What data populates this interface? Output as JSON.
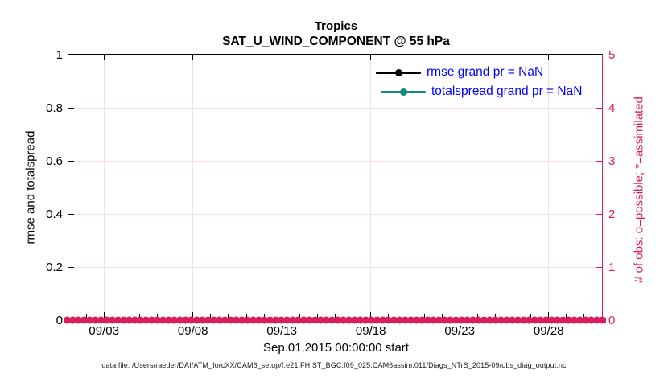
{
  "figure": {
    "title": "Tropics",
    "subtitle": "SAT_U_WIND_COMPONENT @ 55 hPa"
  },
  "legend": {
    "text_color": "#0000ff",
    "items": [
      {
        "label": "rmse grand pr = NaN",
        "color": "#000000"
      },
      {
        "label": "totalspread grand pr = NaN",
        "color": "#168a81"
      }
    ]
  },
  "footer": {
    "text": "data file: /Users/raeder/DAI/ATM_forcXX/CAM6_setup/f.e21.FHIST_BGC.f09_025.CAM6assim.011/Diags_NTrS_2015-09/obs_diag_output.nc"
  },
  "chart_data": {
    "type": "line",
    "title": "Tropics",
    "subtitle": "SAT_U_WIND_COMPONENT @ 55 hPa",
    "x_axis": {
      "label": "Sep.01,2015 00:00:00 start",
      "start": "2015-09-01 00:00:00",
      "total_days": 30,
      "minor_tick_every_days": 1,
      "ticks": [
        {
          "label": "09/03",
          "day": 2
        },
        {
          "label": "09/08",
          "day": 7
        },
        {
          "label": "09/13",
          "day": 12
        },
        {
          "label": "09/18",
          "day": 17
        },
        {
          "label": "09/23",
          "day": 22
        },
        {
          "label": "09/28",
          "day": 27
        }
      ]
    },
    "y_left": {
      "label": "rmse and totalspread",
      "lim": [
        0,
        1
      ],
      "color": "#000000",
      "ticks": [
        {
          "label": "0",
          "value": 0
        },
        {
          "label": "0.2",
          "value": 0.2
        },
        {
          "label": "0.4",
          "value": 0.4
        },
        {
          "label": "0.6",
          "value": 0.6
        },
        {
          "label": "0.8",
          "value": 0.8
        },
        {
          "label": "1",
          "value": 1
        }
      ]
    },
    "y_right": {
      "label": "# of obs: o=possible; *=assimilated",
      "lim": [
        0,
        5
      ],
      "color": "#da1c60",
      "ticks": [
        {
          "label": "0",
          "value": 0
        },
        {
          "label": "1",
          "value": 1
        },
        {
          "label": "2",
          "value": 2
        },
        {
          "label": "3",
          "value": 3
        },
        {
          "label": "4",
          "value": 4
        },
        {
          "label": "5",
          "value": 5
        }
      ]
    },
    "grid": {
      "vertical_color": "#e4e4e4",
      "horizontal_color": "#fbdce8",
      "on": true
    },
    "legend_position": "upper-right-inside-no-box",
    "series": [
      {
        "name": "rmse",
        "legend": "rmse grand pr = NaN",
        "grand_pr": "NaN",
        "color": "#000000",
        "all_nan": true,
        "values": []
      },
      {
        "name": "totalspread",
        "legend": "totalspread grand pr = NaN",
        "grand_pr": "NaN",
        "color": "#168a81",
        "all_nan": true,
        "values": []
      },
      {
        "name": "assimilated_obs_count",
        "axis": "right",
        "marker": "*",
        "color": "#da1c60",
        "constant_value": 0,
        "x_range_days": [
          0,
          30
        ]
      }
    ]
  }
}
